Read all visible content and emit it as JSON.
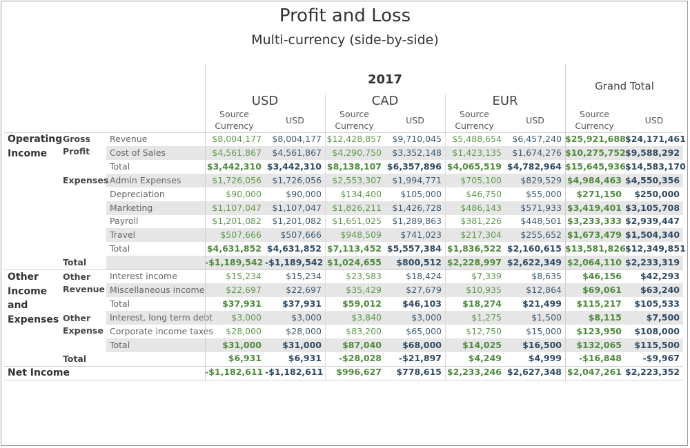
{
  "title": "Profit and Loss",
  "subtitle": "Multi-currency (side-by-side)",
  "year": "2017",
  "grand_total_label": "Grand Total",
  "currencies": [
    "USD",
    "CAD",
    "EUR"
  ],
  "column_headers": {
    "source": "Source Currency",
    "usd": "USD"
  },
  "colors": {
    "source_green": "#5d9a4a",
    "usd_blue": "#3d5a73",
    "shade": "#e6e6e6"
  },
  "groups": {
    "operating_income": "Operating Income",
    "gross_profit": "Gross Profit",
    "expenses": "Expenses",
    "other_income_expenses": "Other Income and Expenses",
    "other_revenue": "Other Revenue",
    "other_expense": "Other Expense",
    "net_income": "Net Income",
    "total": "Total"
  },
  "rows": [
    {
      "label": "Revenue",
      "shade": false,
      "bold": false,
      "values": [
        "$8,004,177",
        "$8,004,177",
        "$12,428,857",
        "$9,710,045",
        "$5,488,654",
        "$6,457,240",
        "$25,921,688",
        "$24,171,461"
      ]
    },
    {
      "label": "Cost of Sales",
      "shade": true,
      "bold": false,
      "values": [
        "$4,561,867",
        "$4,561,867",
        "$4,290,750",
        "$3,352,148",
        "$1,423,135",
        "$1,674,276",
        "$10,275,752",
        "$9,588,292"
      ]
    },
    {
      "label": "Total",
      "shade": false,
      "bold": true,
      "values": [
        "$3,442,310",
        "$3,442,310",
        "$8,138,107",
        "$6,357,896",
        "$4,065,519",
        "$4,782,964",
        "$15,645,936",
        "$14,583,170"
      ]
    },
    {
      "label": "Admin Expenses",
      "shade": true,
      "bold": false,
      "values": [
        "$1,726,056",
        "$1,726,056",
        "$2,553,307",
        "$1,994,771",
        "$705,100",
        "$829,529",
        "$4,984,463",
        "$4,550,356"
      ]
    },
    {
      "label": "Depreciation",
      "shade": false,
      "bold": false,
      "values": [
        "$90,000",
        "$90,000",
        "$134,400",
        "$105,000",
        "$46,750",
        "$55,000",
        "$271,150",
        "$250,000"
      ]
    },
    {
      "label": "Marketing",
      "shade": true,
      "bold": false,
      "values": [
        "$1,107,047",
        "$1,107,047",
        "$1,826,211",
        "$1,426,728",
        "$486,143",
        "$571,933",
        "$3,419,401",
        "$3,105,708"
      ]
    },
    {
      "label": "Payroll",
      "shade": false,
      "bold": false,
      "values": [
        "$1,201,082",
        "$1,201,082",
        "$1,651,025",
        "$1,289,863",
        "$381,226",
        "$448,501",
        "$3,233,333",
        "$2,939,447"
      ]
    },
    {
      "label": "Travel",
      "shade": true,
      "bold": false,
      "values": [
        "$507,666",
        "$507,666",
        "$948,509",
        "$741,023",
        "$217,304",
        "$255,652",
        "$1,673,479",
        "$1,504,340"
      ]
    },
    {
      "label": "Total",
      "shade": false,
      "bold": true,
      "values": [
        "$4,631,852",
        "$4,631,852",
        "$7,113,452",
        "$5,557,384",
        "$1,836,522",
        "$2,160,615",
        "$13,581,826",
        "$12,349,851"
      ]
    },
    {
      "label": "",
      "shade": true,
      "bold": true,
      "values": [
        "-$1,189,542",
        "-$1,189,542",
        "$1,024,655",
        "$800,512",
        "$2,228,997",
        "$2,622,349",
        "$2,064,110",
        "$2,233,319"
      ]
    },
    {
      "label": "Interest income",
      "shade": false,
      "bold": false,
      "values": [
        "$15,234",
        "$15,234",
        "$23,583",
        "$18,424",
        "$7,339",
        "$8,635",
        "$46,156",
        "$42,293"
      ]
    },
    {
      "label": "Miscellaneous income",
      "shade": true,
      "bold": false,
      "values": [
        "$22,697",
        "$22,697",
        "$35,429",
        "$27,679",
        "$10,935",
        "$12,864",
        "$69,061",
        "$63,240"
      ]
    },
    {
      "label": "Total",
      "shade": false,
      "bold": true,
      "values": [
        "$37,931",
        "$37,931",
        "$59,012",
        "$46,103",
        "$18,274",
        "$21,499",
        "$115,217",
        "$105,533"
      ]
    },
    {
      "label": "Interest, long term debt",
      "shade": true,
      "bold": false,
      "values": [
        "$3,000",
        "$3,000",
        "$3,840",
        "$3,000",
        "$1,275",
        "$1,500",
        "$8,115",
        "$7,500"
      ]
    },
    {
      "label": "Corporate income taxes",
      "shade": false,
      "bold": false,
      "values": [
        "$28,000",
        "$28,000",
        "$83,200",
        "$65,000",
        "$12,750",
        "$15,000",
        "$123,950",
        "$108,000"
      ]
    },
    {
      "label": "Total",
      "shade": true,
      "bold": true,
      "values": [
        "$31,000",
        "$31,000",
        "$87,040",
        "$68,000",
        "$14,025",
        "$16,500",
        "$132,065",
        "$115,500"
      ]
    },
    {
      "label": "",
      "shade": false,
      "bold": true,
      "values": [
        "$6,931",
        "$6,931",
        "-$28,028",
        "-$21,897",
        "$4,249",
        "$4,999",
        "-$16,848",
        "-$9,967"
      ]
    },
    {
      "label": "",
      "shade": false,
      "bold": true,
      "values": [
        "-$1,182,611",
        "-$1,182,611",
        "$996,627",
        "$778,615",
        "$2,233,246",
        "$2,627,348",
        "$2,047,261",
        "$2,223,352"
      ]
    }
  ]
}
